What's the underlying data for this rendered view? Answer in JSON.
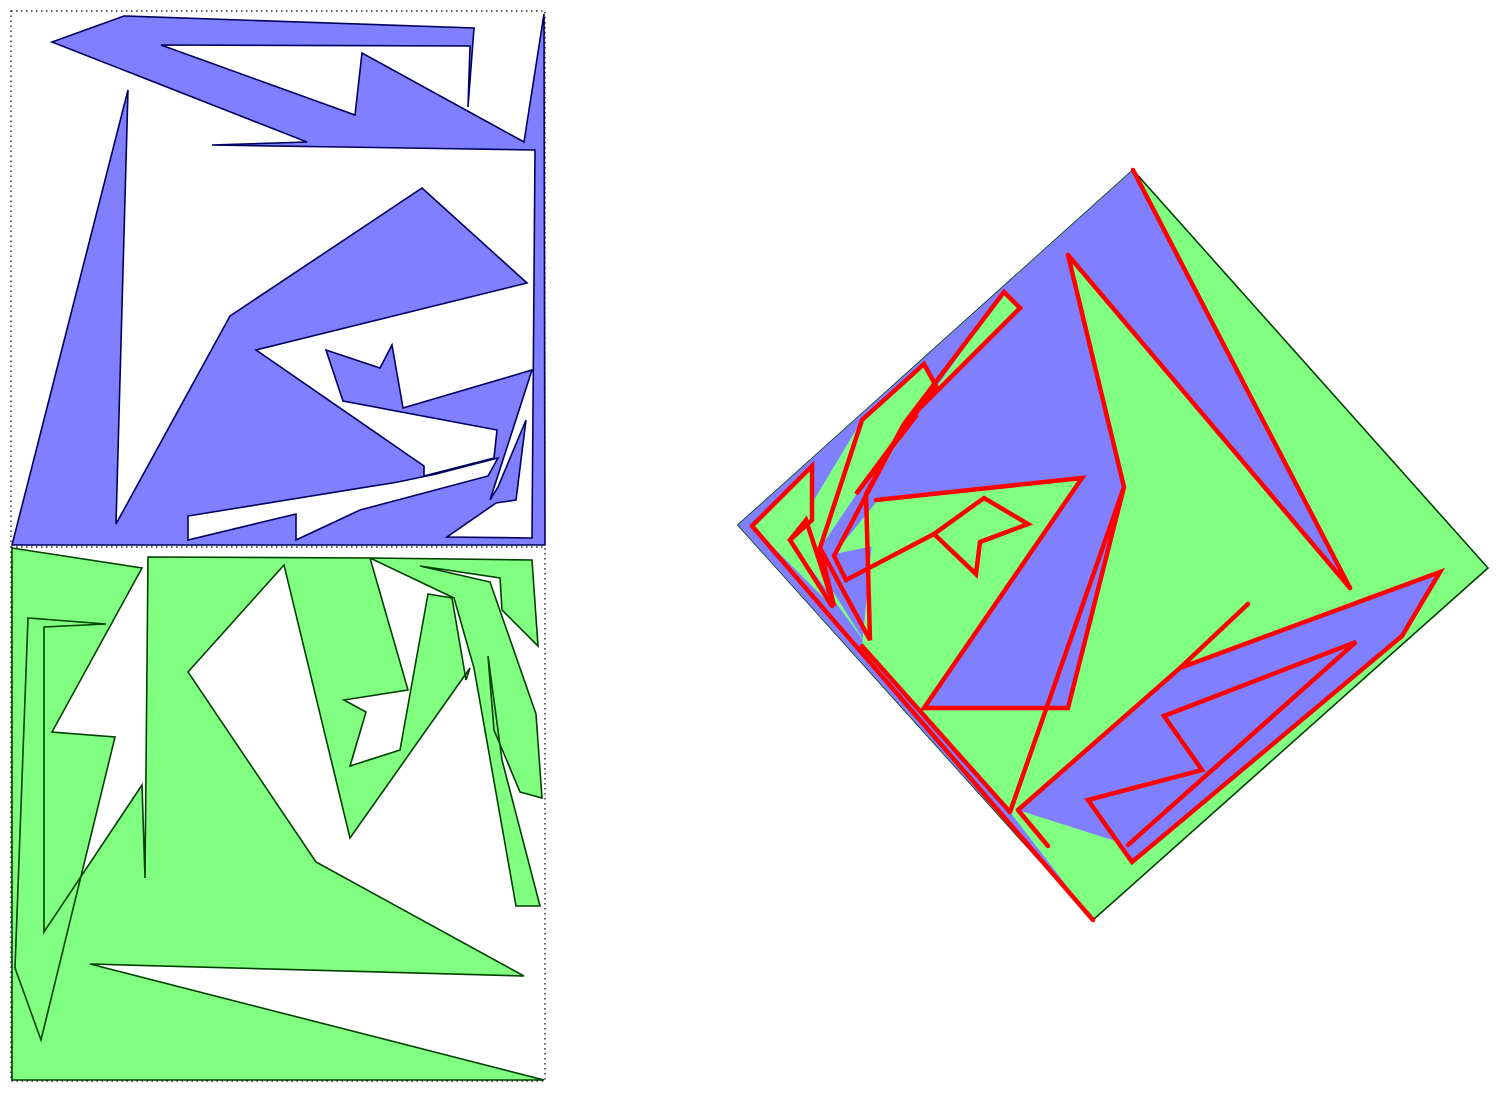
{
  "panels": [
    {
      "name": "blue-square",
      "fill": "#8080ff",
      "stroke": "#000060"
    },
    {
      "name": "green-square",
      "fill": "#80ff80",
      "stroke": "#004000"
    },
    {
      "name": "dissection-diamond",
      "fill_primary": "#80ff80",
      "fill_secondary": "#8080ff",
      "cut_color": "#ff0000"
    }
  ]
}
